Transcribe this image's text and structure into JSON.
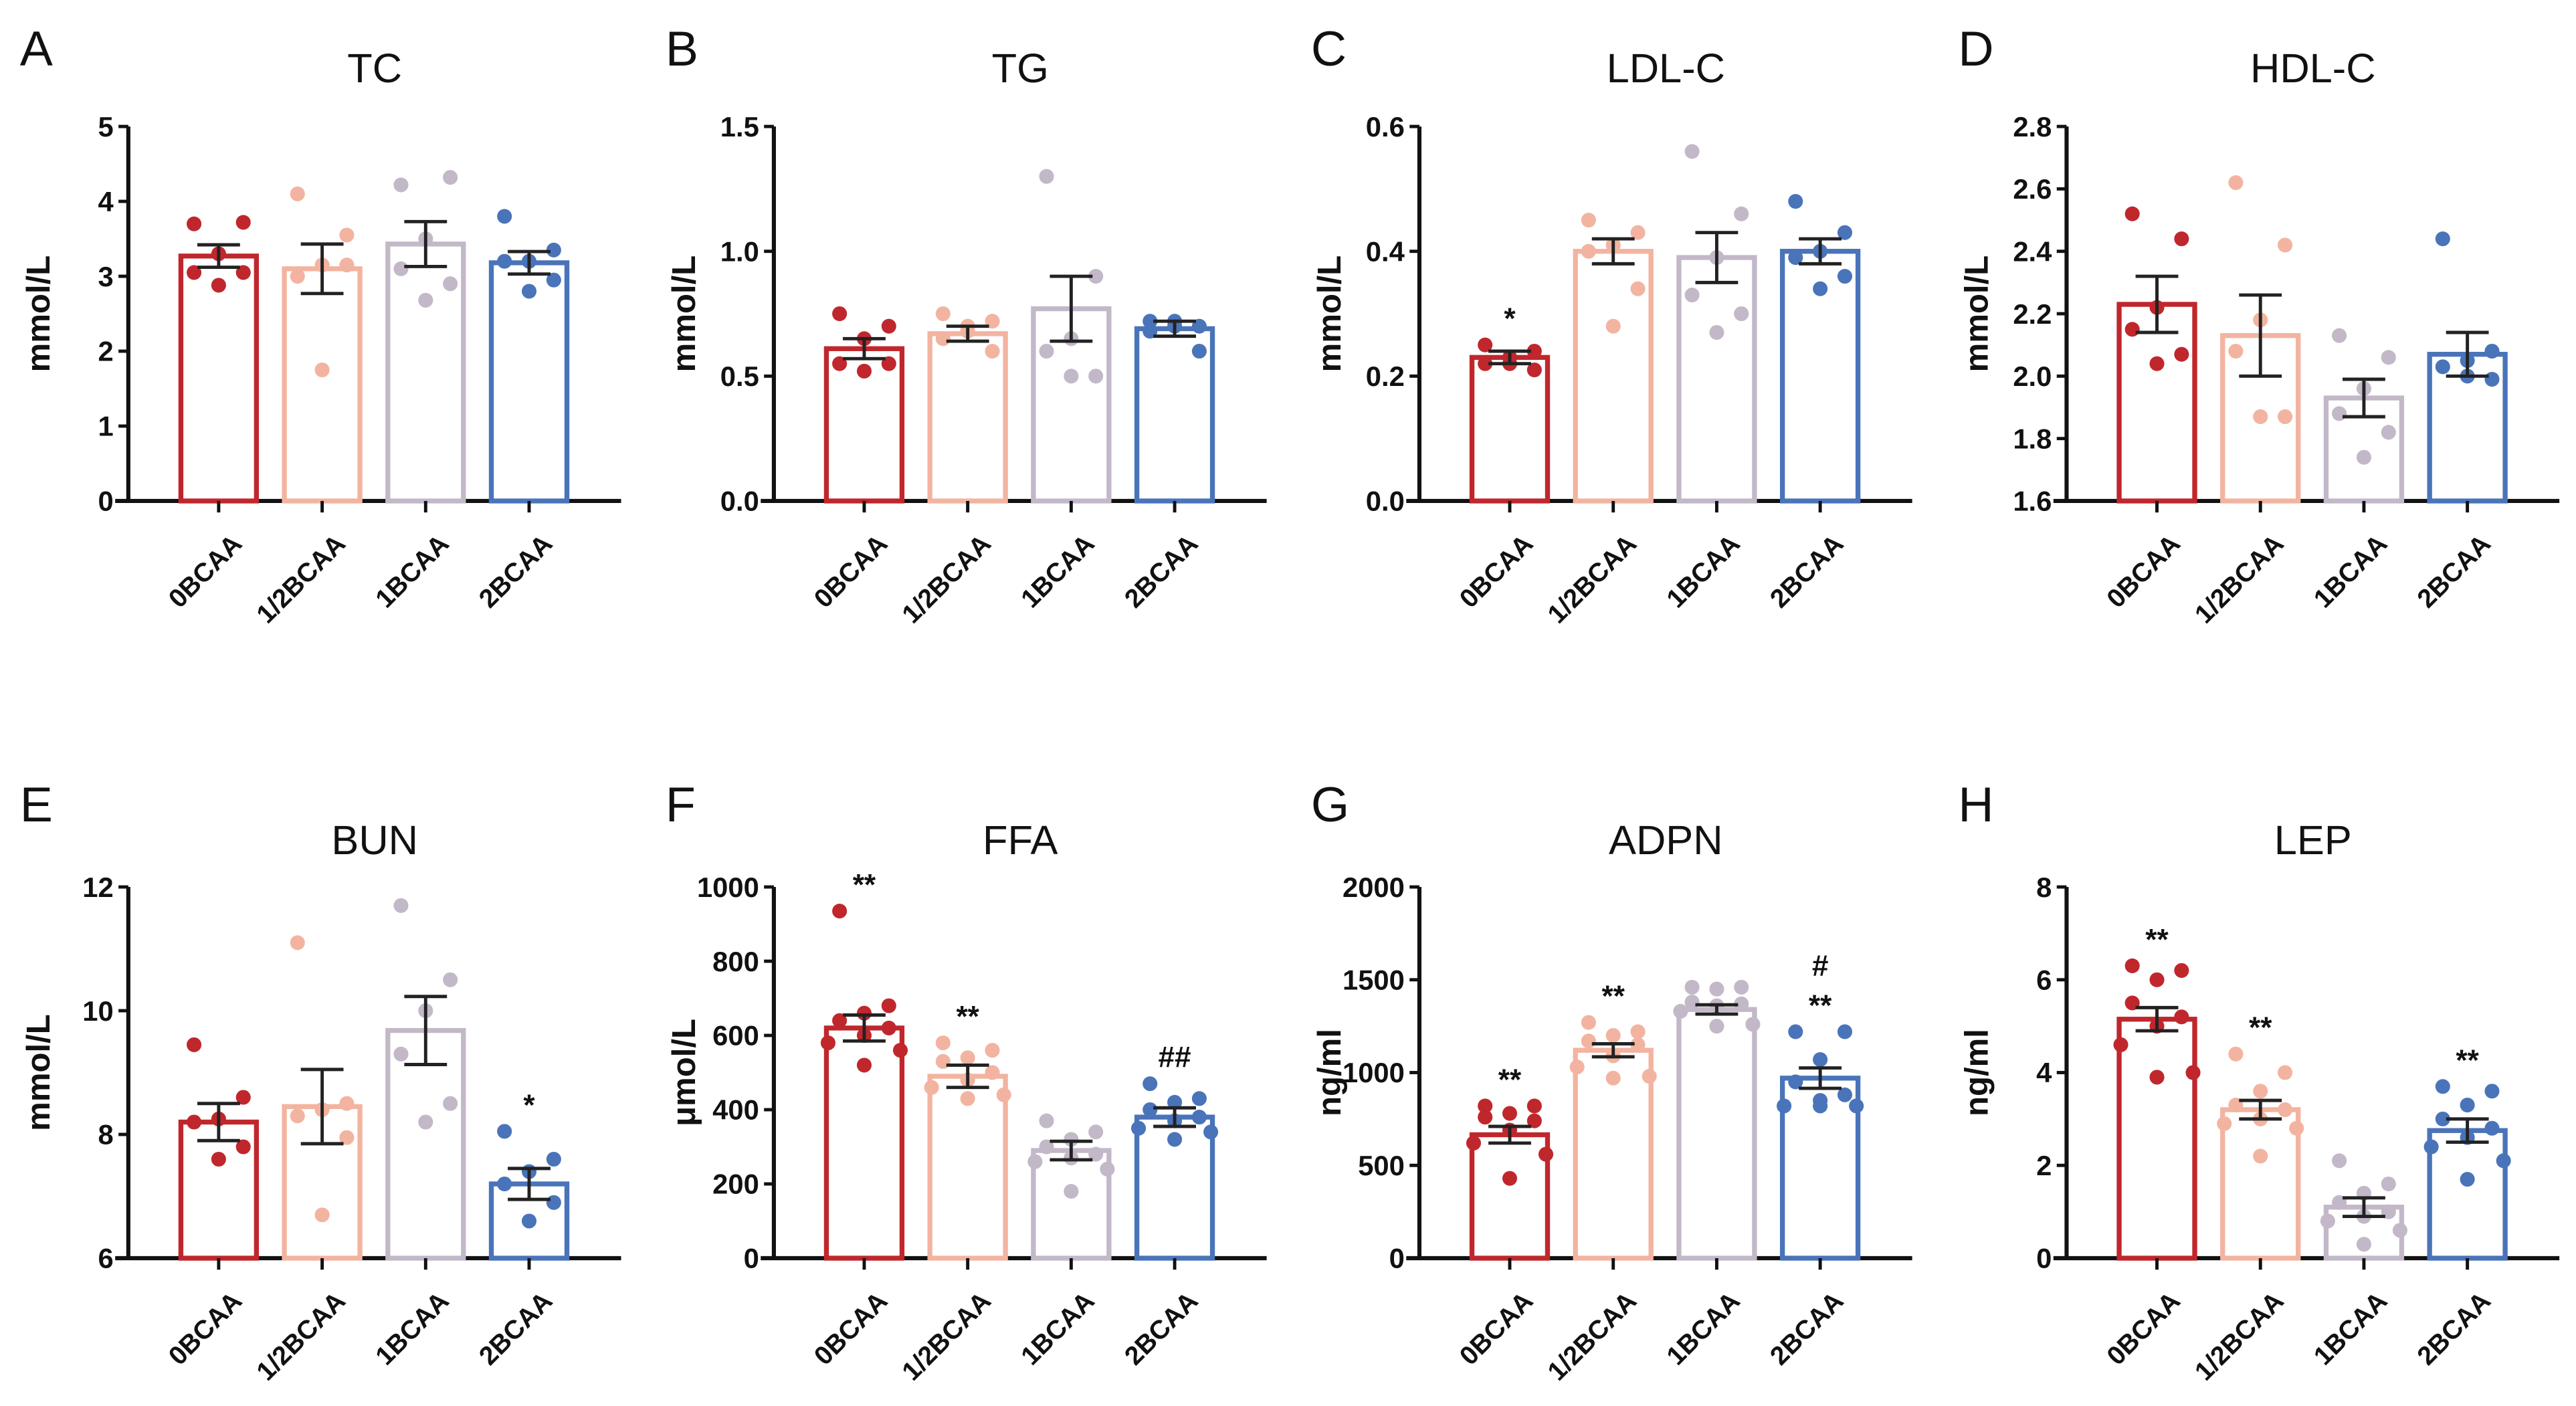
{
  "categories": [
    "0BCAA",
    "1/2BCAA",
    "1BCAA",
    "2BCAA"
  ],
  "colors": [
    "#c0272d",
    "#f2b4a0",
    "#c3b8c8",
    "#4a74b9"
  ],
  "chart_data": [
    {
      "type": "bar",
      "letter": "A",
      "title": "TC",
      "ylabel": "mmol/L",
      "ylim": [
        0,
        5
      ],
      "yticks": [
        "0",
        "1",
        "2",
        "3",
        "4",
        "5"
      ],
      "means": [
        3.27,
        3.1,
        3.43,
        3.18
      ],
      "sem": [
        0.15,
        0.33,
        0.3,
        0.15
      ],
      "annotations": [
        "",
        "",
        "",
        ""
      ],
      "points": [
        [
          3.7,
          3.72,
          3.3,
          3.05,
          3.05,
          2.88
        ],
        [
          4.1,
          3.55,
          3.15,
          3.0,
          3.15,
          1.75
        ],
        [
          4.22,
          4.32,
          3.5,
          3.1,
          2.9,
          2.68
        ],
        [
          3.8,
          3.35,
          3.2,
          3.2,
          2.95,
          2.8
        ]
      ]
    },
    {
      "type": "bar",
      "letter": "B",
      "title": "TG",
      "ylabel": "mmol/L",
      "ylim": [
        0,
        1.5
      ],
      "yticks": [
        "0.0",
        "0.5",
        "1.0",
        "1.5"
      ],
      "means": [
        0.61,
        0.67,
        0.77,
        0.69
      ],
      "sem": [
        0.04,
        0.03,
        0.13,
        0.03
      ],
      "annotations": [
        "",
        "",
        "",
        ""
      ],
      "points": [
        [
          0.75,
          0.7,
          0.65,
          0.55,
          0.55,
          0.52
        ],
        [
          0.75,
          0.72,
          0.68,
          0.65,
          0.6,
          0.7
        ],
        [
          1.3,
          0.9,
          0.65,
          0.6,
          0.5,
          0.5
        ],
        [
          0.72,
          0.7,
          0.7,
          0.68,
          0.6,
          0.72
        ]
      ]
    },
    {
      "type": "bar",
      "letter": "C",
      "title": "LDL-C",
      "ylabel": "mmol/L",
      "ylim": [
        0,
        0.6
      ],
      "yticks": [
        "0.0",
        "0.2",
        "0.4",
        "0.6"
      ],
      "means": [
        0.23,
        0.4,
        0.39,
        0.4
      ],
      "sem": [
        0.01,
        0.02,
        0.04,
        0.02
      ],
      "annotations": [
        "*",
        "",
        "",
        ""
      ],
      "points": [
        [
          0.25,
          0.24,
          0.23,
          0.22,
          0.21,
          0.22
        ],
        [
          0.45,
          0.43,
          0.41,
          0.4,
          0.34,
          0.28
        ],
        [
          0.56,
          0.46,
          0.39,
          0.33,
          0.3,
          0.27
        ],
        [
          0.48,
          0.43,
          0.4,
          0.39,
          0.36,
          0.34
        ]
      ]
    },
    {
      "type": "bar",
      "letter": "D",
      "title": "HDL-C",
      "ylabel": "mmol/L",
      "ylim": [
        1.6,
        2.8
      ],
      "yticks": [
        "1.6",
        "1.8",
        "2.0",
        "2.2",
        "2.4",
        "2.6",
        "2.8"
      ],
      "means": [
        2.23,
        2.13,
        1.93,
        2.07
      ],
      "sem": [
        0.09,
        0.13,
        0.06,
        0.07
      ],
      "annotations": [
        "",
        "",
        "",
        ""
      ],
      "points": [
        [
          2.52,
          2.44,
          2.22,
          2.15,
          2.07,
          2.04
        ],
        [
          2.62,
          2.42,
          2.18,
          2.08,
          1.87,
          1.87
        ],
        [
          2.13,
          2.06,
          1.96,
          1.88,
          1.82,
          1.74
        ],
        [
          2.44,
          2.08,
          2.05,
          2.03,
          1.99,
          2.0
        ]
      ]
    },
    {
      "type": "bar",
      "letter": "E",
      "title": "BUN",
      "ylabel": "mmol/L",
      "ylim": [
        6,
        12
      ],
      "yticks": [
        "6",
        "8",
        "10",
        "12"
      ],
      "means": [
        8.2,
        8.45,
        9.68,
        7.2
      ],
      "sem": [
        0.3,
        0.6,
        0.55,
        0.25
      ],
      "annotations": [
        "",
        "",
        "",
        "*"
      ],
      "points": [
        [
          9.45,
          8.6,
          8.25,
          8.2,
          7.8,
          7.6
        ],
        [
          11.1,
          8.5,
          8.4,
          8.3,
          7.95,
          6.7
        ],
        [
          11.7,
          10.5,
          10.0,
          9.3,
          8.5,
          8.2
        ],
        [
          8.05,
          7.6,
          7.4,
          7.2,
          6.9,
          6.6
        ]
      ]
    },
    {
      "type": "bar",
      "letter": "F",
      "title": "FFA",
      "ylabel": "μmol/L",
      "ylim": [
        0,
        1000
      ],
      "yticks": [
        "0",
        "200",
        "400",
        "600",
        "800",
        "1000"
      ],
      "means": [
        620,
        490,
        290,
        380
      ],
      "sem": [
        35,
        30,
        25,
        25
      ],
      "annotations": [
        "**",
        "**",
        "",
        "##"
      ],
      "points": [
        [
          935,
          680,
          660,
          640,
          620,
          600,
          580,
          560,
          520
        ],
        [
          580,
          560,
          540,
          530,
          500,
          480,
          460,
          440,
          430
        ],
        [
          370,
          340,
          320,
          300,
          280,
          270,
          260,
          240,
          180
        ],
        [
          470,
          430,
          420,
          400,
          380,
          370,
          350,
          340,
          320
        ]
      ]
    },
    {
      "type": "bar",
      "letter": "G",
      "title": "ADPN",
      "ylabel": "ng/ml",
      "ylim": [
        0,
        2000
      ],
      "yticks": [
        "0",
        "500",
        "1000",
        "1500",
        "2000"
      ],
      "means": [
        665,
        1120,
        1340,
        970
      ],
      "sem": [
        45,
        35,
        25,
        55
      ],
      "annotations": [
        "**",
        "**",
        "",
        "**"
      ],
      "annotations2": [
        "",
        "",
        "",
        "#"
      ],
      "points": [
        [
          820,
          820,
          780,
          760,
          740,
          690,
          620,
          560,
          430
        ],
        [
          1270,
          1220,
          1200,
          1170,
          1150,
          1090,
          1030,
          980,
          970
        ],
        [
          1460,
          1460,
          1450,
          1380,
          1370,
          1360,
          1330,
          1260,
          1250
        ],
        [
          1220,
          1220,
          1070,
          950,
          880,
          850,
          820,
          820,
          820
        ]
      ]
    },
    {
      "type": "bar",
      "letter": "H",
      "title": "LEP",
      "ylabel": "ng/ml",
      "ylim": [
        0,
        8
      ],
      "yticks": [
        "0",
        "2",
        "4",
        "6",
        "8"
      ],
      "means": [
        5.15,
        3.2,
        1.1,
        2.75
      ],
      "sem": [
        0.25,
        0.2,
        0.2,
        0.25
      ],
      "annotations": [
        "**",
        "**",
        "",
        "**"
      ],
      "points": [
        [
          6.3,
          6.2,
          6.0,
          5.5,
          5.2,
          5.0,
          4.6,
          4.0,
          3.9
        ],
        [
          4.4,
          4.0,
          3.6,
          3.3,
          3.2,
          3.0,
          2.9,
          2.8,
          2.2
        ],
        [
          2.1,
          1.6,
          1.4,
          1.2,
          1.0,
          0.9,
          0.8,
          0.6,
          0.3
        ],
        [
          3.7,
          3.6,
          3.3,
          3.0,
          2.8,
          2.6,
          2.4,
          2.1,
          1.7
        ]
      ]
    }
  ]
}
